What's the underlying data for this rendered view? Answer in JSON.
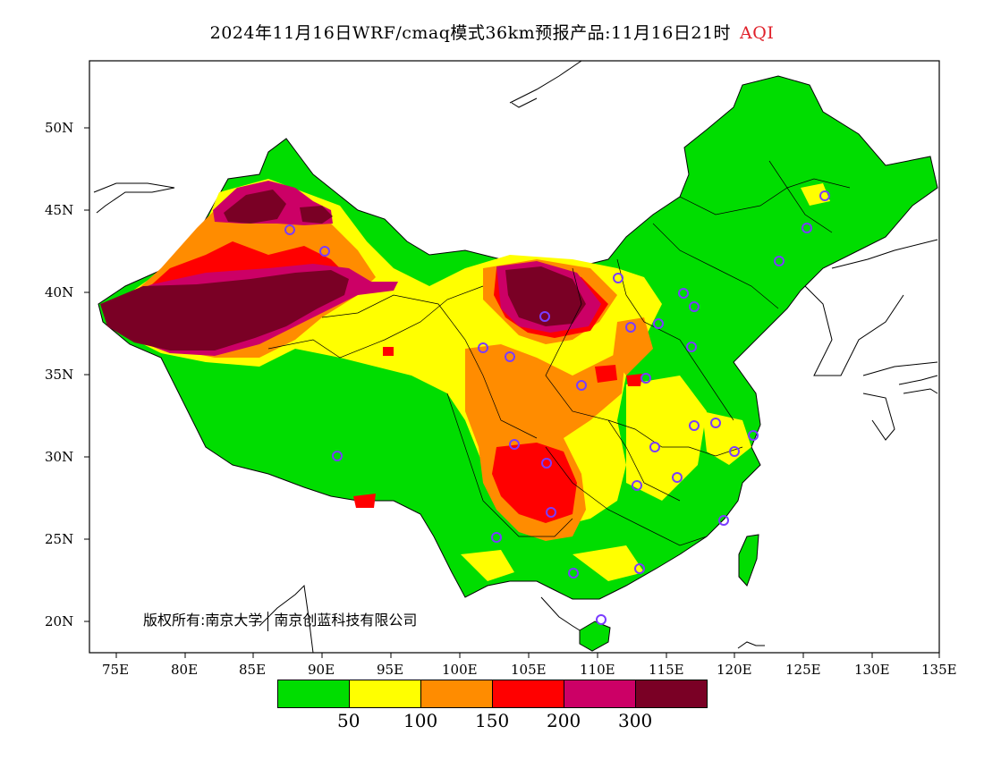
{
  "title": {
    "main": "2024年11月16日WRF/cmaq模式36km预报产品:11月16日21时",
    "variable": "AQI"
  },
  "copyright": {
    "prefix": "版权所有:南京大学",
    "suffix": "南京创蓝科技有限公司"
  },
  "axes": {
    "latitude_labels": [
      "50N",
      "45N",
      "40N",
      "35N",
      "30N",
      "25N",
      "20N"
    ],
    "longitude_labels": [
      "75E",
      "80E",
      "85E",
      "90E",
      "95E",
      "100E",
      "105E",
      "110E",
      "115E",
      "120E",
      "125E",
      "130E",
      "135E"
    ]
  },
  "legend": {
    "colors": [
      "#00dd00",
      "#ffff00",
      "#ff8c00",
      "#ff0000",
      "#cc0066",
      "#7a0025"
    ],
    "ticks": [
      "50",
      "100",
      "150",
      "200",
      "300"
    ]
  },
  "map_colors": {
    "good": "#00dd00",
    "moderate": "#ffff00",
    "sensitive": "#ff8c00",
    "unhealthy": "#ff0000",
    "very_unhealthy": "#cc0066",
    "hazardous": "#7a0025",
    "station_ring": "#7a3cff"
  }
}
